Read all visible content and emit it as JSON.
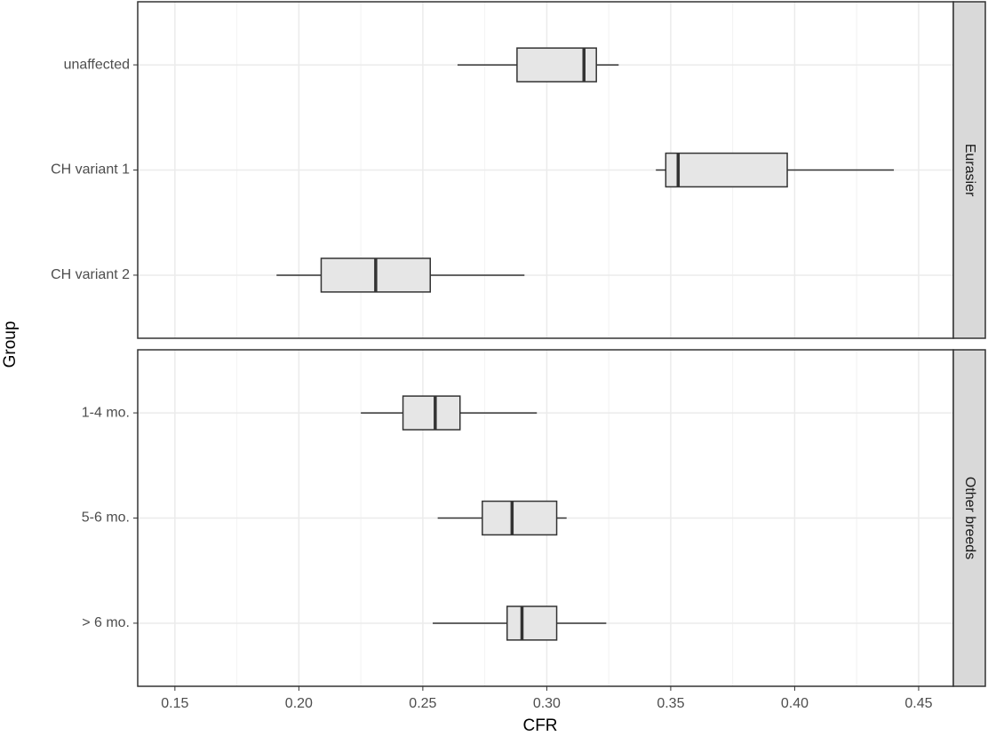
{
  "chart_data": {
    "type": "boxplot",
    "xlabel": "CFR",
    "ylabel": "Group",
    "xlim": [
      0.135,
      0.464
    ],
    "xticks": [
      0.15,
      {
        "value": 0.2,
        "label": "0.20"
      },
      0.25,
      {
        "value": 0.3,
        "label": "0.30"
      },
      0.35,
      {
        "value": 0.4,
        "label": "0.40"
      },
      0.45
    ],
    "grid": true,
    "color": "#e6e6e6",
    "facets": [
      {
        "name": "Eurasier",
        "categories": [
          "unaffected",
          "CH variant 1",
          "CH variant 2"
        ],
        "boxes": [
          {
            "whislo": 0.264,
            "q1": 0.288,
            "med": 0.315,
            "q3": 0.32,
            "whishi": 0.329
          },
          {
            "whislo": 0.344,
            "q1": 0.348,
            "med": 0.353,
            "q3": 0.397,
            "whishi": 0.44
          },
          {
            "whislo": 0.191,
            "q1": 0.209,
            "med": 0.231,
            "q3": 0.253,
            "whishi": 0.291
          }
        ]
      },
      {
        "name": "Other breeds",
        "categories": [
          "1-4 mo.",
          "5-6 mo.",
          "> 6 mo."
        ],
        "boxes": [
          {
            "whislo": 0.225,
            "q1": 0.242,
            "med": 0.255,
            "q3": 0.265,
            "whishi": 0.296
          },
          {
            "whislo": 0.256,
            "q1": 0.274,
            "med": 0.286,
            "q3": 0.304,
            "whishi": 0.308
          },
          {
            "whislo": 0.254,
            "q1": 0.284,
            "med": 0.29,
            "q3": 0.304,
            "whishi": 0.324
          }
        ]
      }
    ]
  }
}
